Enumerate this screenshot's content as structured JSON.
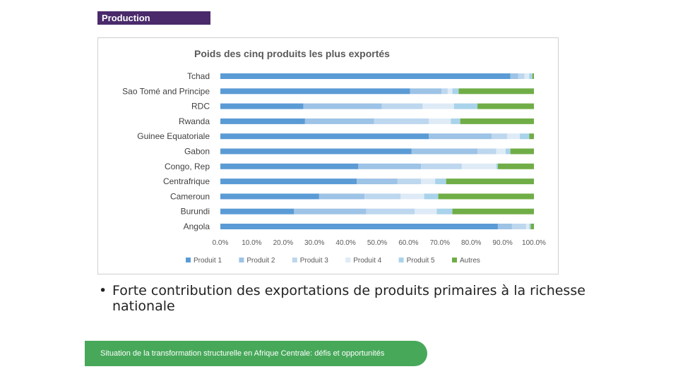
{
  "header": {
    "section_label": "Production"
  },
  "chart_data": {
    "type": "bar",
    "orientation": "horizontal",
    "stacked": true,
    "title": "Poids des cinq produits les plus exportés",
    "categories": [
      "Tchad",
      "Sao Tomé and Principe",
      "RDC",
      "Rwanda",
      "Guinee Equatoriale",
      "Gabon",
      "Congo, Rep",
      "Centrafrique",
      "Cameroun",
      "Burundi",
      "Angola"
    ],
    "series": [
      {
        "name": "Produit 1",
        "color": "#5b9bd5",
        "values": [
          92.5,
          60.5,
          26.5,
          27,
          66.5,
          61,
          44,
          43.5,
          31.5,
          23.5,
          88.5
        ]
      },
      {
        "name": "Produit 2",
        "color": "#9dc3e6",
        "values": [
          2.5,
          10,
          25,
          22,
          20,
          21,
          20,
          13,
          14.5,
          23,
          4.5
        ]
      },
      {
        "name": "Produit 3",
        "color": "#bdd7ee",
        "values": [
          2,
          2,
          13,
          17.5,
          5,
          6,
          13,
          7.5,
          11.5,
          15.5,
          4.5
        ]
      },
      {
        "name": "Produit 4",
        "color": "#deebf7",
        "values": [
          1.5,
          1.5,
          10,
          7,
          4,
          3,
          11,
          4.5,
          7.5,
          7,
          1
        ]
      },
      {
        "name": "Produit 5",
        "color": "#a9d3ea",
        "values": [
          1,
          2,
          7.5,
          3,
          3,
          1.5,
          0.5,
          3.5,
          4.5,
          5,
          0.5
        ]
      },
      {
        "name": "Autres",
        "color": "#70ad47",
        "values": [
          0.5,
          24,
          18,
          23.5,
          1.5,
          7.5,
          11.5,
          28,
          30.5,
          26,
          1
        ]
      }
    ],
    "x_ticks": [
      "0.0%",
      "10.0%",
      "20.0%",
      "30.0%",
      "40.0%",
      "50.0%",
      "60.0%",
      "70.0%",
      "80.0%",
      "90.0%",
      "100.0%"
    ],
    "xlim": [
      0,
      100
    ],
    "grid": false,
    "legend_position": "bottom"
  },
  "bullet": {
    "marker": "•",
    "text": "Forte contribution des exportations de produits primaires à la richesse nationale"
  },
  "footer": {
    "text": "Situation de la transformation structurelle en Afrique Centrale:  défis et opportunités"
  }
}
